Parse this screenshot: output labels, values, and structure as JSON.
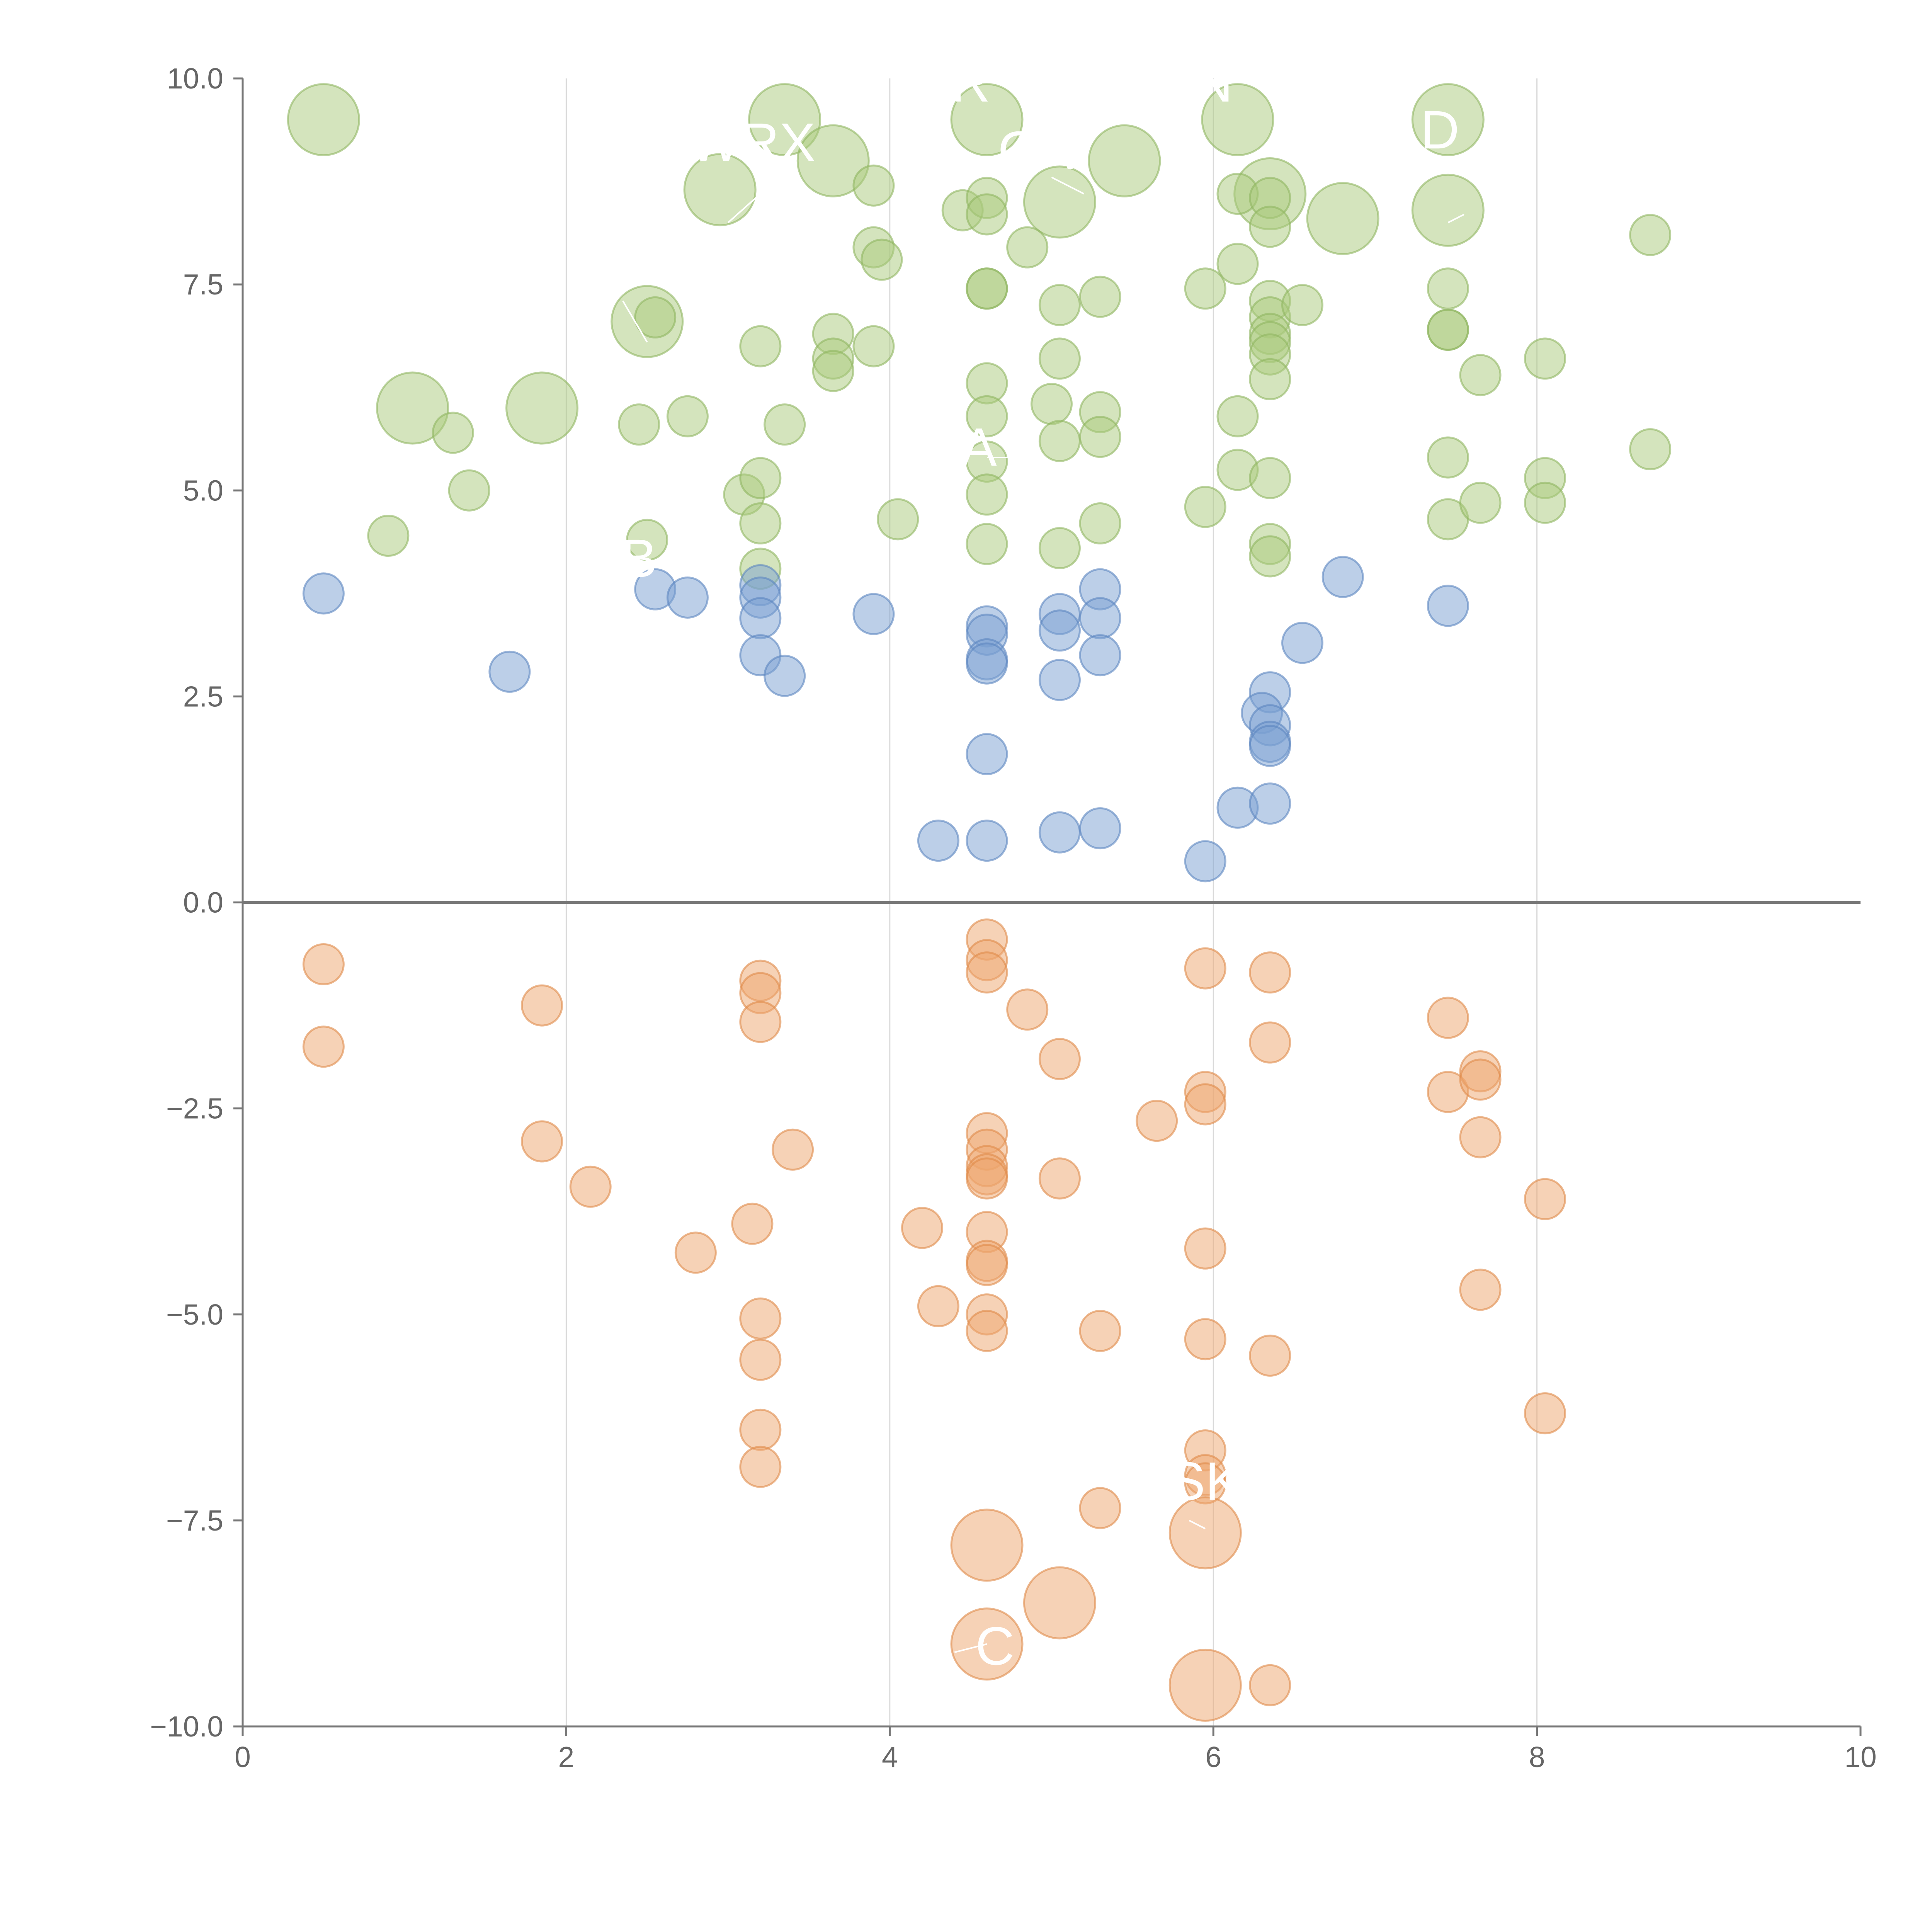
{
  "colors": {
    "green": "#a9c97c",
    "green_stroke": "#8fb560",
    "blue": "#7a9fd1",
    "blue_stroke": "#5b85c0",
    "orange": "#eea56d",
    "orange_stroke": "#df8a4a"
  },
  "chart_data": {
    "type": "scatter",
    "title": "",
    "xlabel": "",
    "ylabel": "",
    "xlim": [
      0,
      10
    ],
    "ylim": [
      -10,
      10
    ],
    "x_ticks": [
      0,
      2,
      4,
      6,
      8,
      10
    ],
    "x_tick_labels": [
      "0",
      "2",
      "4",
      "6",
      "8",
      "10"
    ],
    "y_ticks": [
      10,
      7.5,
      5,
      2.5,
      0,
      -2.5,
      -5,
      -7.5,
      -10
    ],
    "y_tick_labels": [
      "10.0",
      "7.5",
      "5.0",
      "2.5",
      "0.0",
      "−2.5",
      "−5.0",
      "−7.5",
      "−10.0"
    ],
    "grid_x": true,
    "zero_line": true,
    "series": [
      {
        "name": "green",
        "color_key": "green",
        "points": [
          [
            0.5,
            9.5,
            2
          ],
          [
            3.35,
            9.5,
            2
          ],
          [
            4.6,
            9.5,
            2
          ],
          [
            6.15,
            9.5,
            2
          ],
          [
            7.45,
            9.5,
            2
          ],
          [
            3.65,
            9.0,
            2
          ],
          [
            5.45,
            9.0,
            2
          ],
          [
            2.95,
            8.65,
            2
          ],
          [
            5.05,
            8.5,
            2
          ],
          [
            6.35,
            8.6,
            2
          ],
          [
            6.8,
            8.3,
            2
          ],
          [
            7.45,
            8.4,
            2
          ],
          [
            2.5,
            7.05,
            2
          ],
          [
            1.05,
            6.0,
            2
          ],
          [
            1.85,
            6.0,
            2
          ],
          [
            3.9,
            8.7,
            1
          ],
          [
            4.45,
            8.4,
            1
          ],
          [
            4.6,
            8.55,
            1
          ],
          [
            4.6,
            8.35,
            1
          ],
          [
            6.15,
            8.6,
            1
          ],
          [
            6.35,
            8.55,
            1
          ],
          [
            6.35,
            8.2,
            1
          ],
          [
            3.9,
            7.95,
            1
          ],
          [
            3.95,
            7.8,
            1
          ],
          [
            4.85,
            7.95,
            1
          ],
          [
            8.7,
            8.1,
            1
          ],
          [
            4.6,
            7.45,
            1
          ],
          [
            4.6,
            7.45,
            1
          ],
          [
            5.05,
            7.25,
            1
          ],
          [
            5.3,
            7.35,
            1
          ],
          [
            5.95,
            7.45,
            1
          ],
          [
            6.15,
            7.75,
            1
          ],
          [
            6.35,
            7.3,
            1
          ],
          [
            6.35,
            7.1,
            1
          ],
          [
            6.35,
            6.9,
            1
          ],
          [
            6.35,
            6.8,
            1
          ],
          [
            6.35,
            6.65,
            1
          ],
          [
            6.55,
            7.25,
            1
          ],
          [
            7.45,
            7.45,
            1
          ],
          [
            7.45,
            6.95,
            1
          ],
          [
            7.45,
            6.95,
            1
          ],
          [
            2.55,
            7.1,
            1
          ],
          [
            3.2,
            6.75,
            1
          ],
          [
            3.65,
            6.9,
            1
          ],
          [
            3.65,
            6.6,
            1
          ],
          [
            3.65,
            6.45,
            1
          ],
          [
            3.9,
            6.75,
            1
          ],
          [
            4.6,
            6.3,
            1
          ],
          [
            5.05,
            6.6,
            1
          ],
          [
            6.35,
            6.35,
            1
          ],
          [
            7.65,
            6.4,
            1
          ],
          [
            8.05,
            6.6,
            1
          ],
          [
            1.3,
            5.7,
            1
          ],
          [
            2.45,
            5.8,
            1
          ],
          [
            2.75,
            5.9,
            1
          ],
          [
            3.35,
            5.8,
            1
          ],
          [
            4.6,
            5.9,
            1
          ],
          [
            5.0,
            6.05,
            1
          ],
          [
            5.05,
            5.6,
            1
          ],
          [
            5.3,
            5.95,
            1
          ],
          [
            5.3,
            5.65,
            1
          ],
          [
            6.15,
            5.9,
            1
          ],
          [
            8.7,
            5.5,
            1
          ],
          [
            1.4,
            5.0,
            1
          ],
          [
            3.1,
            4.95,
            1
          ],
          [
            3.2,
            5.15,
            1
          ],
          [
            3.2,
            4.6,
            1
          ],
          [
            4.6,
            5.35,
            1
          ],
          [
            4.6,
            4.95,
            1
          ],
          [
            4.05,
            4.65,
            1
          ],
          [
            6.15,
            5.25,
            1
          ],
          [
            6.35,
            5.15,
            1
          ],
          [
            5.95,
            4.8,
            1
          ],
          [
            7.45,
            5.4,
            1
          ],
          [
            7.45,
            4.65,
            1
          ],
          [
            7.65,
            4.85,
            1
          ],
          [
            8.05,
            5.15,
            1
          ],
          [
            8.05,
            4.85,
            1
          ],
          [
            0.9,
            4.45,
            1
          ],
          [
            2.5,
            4.4,
            1
          ],
          [
            3.2,
            4.05,
            1
          ],
          [
            4.6,
            4.35,
            1
          ],
          [
            5.05,
            4.3,
            1
          ],
          [
            5.3,
            4.6,
            1
          ],
          [
            6.35,
            4.35,
            1
          ],
          [
            6.35,
            4.2,
            1
          ]
        ]
      },
      {
        "name": "blue",
        "color_key": "blue",
        "points": [
          [
            0.5,
            3.75,
            1
          ],
          [
            2.55,
            3.8,
            1
          ],
          [
            2.75,
            3.7,
            1
          ],
          [
            3.2,
            3.85,
            1
          ],
          [
            3.2,
            3.7,
            1
          ],
          [
            3.2,
            3.45,
            1
          ],
          [
            3.2,
            3.0,
            1
          ],
          [
            3.35,
            2.75,
            1
          ],
          [
            3.9,
            3.5,
            1
          ],
          [
            4.6,
            3.35,
            1
          ],
          [
            4.6,
            3.25,
            1
          ],
          [
            4.6,
            2.95,
            1
          ],
          [
            4.6,
            2.9,
            1
          ],
          [
            5.05,
            3.5,
            1
          ],
          [
            5.05,
            3.3,
            1
          ],
          [
            5.05,
            2.7,
            1
          ],
          [
            5.3,
            3.8,
            1
          ],
          [
            5.3,
            3.45,
            1
          ],
          [
            5.3,
            3.0,
            1
          ],
          [
            6.8,
            3.95,
            1
          ],
          [
            6.55,
            3.15,
            1
          ],
          [
            7.45,
            3.6,
            1
          ],
          [
            1.65,
            2.8,
            1
          ],
          [
            6.35,
            2.55,
            1
          ],
          [
            6.3,
            2.3,
            1
          ],
          [
            6.35,
            2.15,
            1
          ],
          [
            6.35,
            1.95,
            1
          ],
          [
            6.35,
            1.9,
            1
          ],
          [
            4.6,
            1.8,
            1
          ],
          [
            6.15,
            1.15,
            1
          ],
          [
            6.35,
            1.2,
            1
          ],
          [
            4.3,
            0.75,
            1
          ],
          [
            4.6,
            0.75,
            1
          ],
          [
            5.05,
            0.85,
            1
          ],
          [
            5.3,
            0.9,
            1
          ],
          [
            5.95,
            0.5,
            1
          ]
        ]
      },
      {
        "name": "orange",
        "color_key": "orange",
        "points": [
          [
            0.5,
            -0.75,
            1
          ],
          [
            0.5,
            -1.75,
            1
          ],
          [
            1.85,
            -1.25,
            1
          ],
          [
            1.85,
            -2.9,
            1
          ],
          [
            2.15,
            -3.45,
            1
          ],
          [
            3.2,
            -0.95,
            1
          ],
          [
            3.2,
            -1.1,
            1
          ],
          [
            3.2,
            -1.45,
            1
          ],
          [
            3.4,
            -3.0,
            1
          ],
          [
            3.15,
            -3.9,
            1
          ],
          [
            2.8,
            -4.25,
            1
          ],
          [
            3.2,
            -5.05,
            1
          ],
          [
            3.2,
            -5.55,
            1
          ],
          [
            3.2,
            -6.4,
            1
          ],
          [
            3.2,
            -6.85,
            1
          ],
          [
            4.6,
            -0.45,
            1
          ],
          [
            4.6,
            -0.7,
            1
          ],
          [
            4.6,
            -0.85,
            1
          ],
          [
            4.85,
            -1.3,
            1
          ],
          [
            5.05,
            -1.9,
            1
          ],
          [
            4.6,
            -2.8,
            1
          ],
          [
            4.6,
            -3.0,
            1
          ],
          [
            4.6,
            -3.2,
            1
          ],
          [
            4.6,
            -3.3,
            1
          ],
          [
            4.6,
            -3.35,
            1
          ],
          [
            5.05,
            -3.35,
            1
          ],
          [
            4.2,
            -3.95,
            1
          ],
          [
            4.6,
            -4.0,
            1
          ],
          [
            4.6,
            -4.35,
            1
          ],
          [
            4.6,
            -4.4,
            1
          ],
          [
            4.3,
            -4.9,
            1
          ],
          [
            4.6,
            -5.0,
            1
          ],
          [
            4.6,
            -5.2,
            1
          ],
          [
            5.3,
            -5.2,
            1
          ],
          [
            5.3,
            -7.35,
            1
          ],
          [
            5.95,
            -0.8,
            1
          ],
          [
            5.65,
            -2.65,
            1
          ],
          [
            5.95,
            -2.3,
            1
          ],
          [
            5.95,
            -2.45,
            1
          ],
          [
            5.95,
            -4.2,
            1
          ],
          [
            5.95,
            -5.3,
            1
          ],
          [
            5.95,
            -6.65,
            1
          ],
          [
            5.95,
            -6.95,
            1
          ],
          [
            5.95,
            -7.05,
            1
          ],
          [
            6.35,
            -0.85,
            1
          ],
          [
            6.35,
            -1.7,
            1
          ],
          [
            6.35,
            -5.5,
            1
          ],
          [
            6.35,
            -9.5,
            1
          ],
          [
            7.45,
            -1.4,
            1
          ],
          [
            7.45,
            -2.3,
            1
          ],
          [
            7.65,
            -2.05,
            1
          ],
          [
            7.65,
            -2.15,
            1
          ],
          [
            7.65,
            -2.85,
            1
          ],
          [
            7.65,
            -4.7,
            1
          ],
          [
            8.05,
            -3.6,
            1
          ],
          [
            8.05,
            -6.2,
            1
          ],
          [
            4.6,
            -7.8,
            2
          ],
          [
            5.95,
            -7.65,
            2
          ],
          [
            5.05,
            -8.5,
            2
          ],
          [
            4.6,
            -9.0,
            2
          ],
          [
            5.95,
            -9.5,
            2
          ]
        ]
      }
    ],
    "annotations": [
      {
        "text": "R",
        "x": 4.5,
        "y": 9.72,
        "lx1": 4.05,
        "ly1": 9.6,
        "lx2": 4.3,
        "ly2": 9.6
      },
      {
        "text": "N",
        "x": 6.0,
        "y": 9.72,
        "lx1": 6.0,
        "ly1": 9.6,
        "lx2": 6.0,
        "ly2": 9.6
      },
      {
        "text": "WRX",
        "x": 3.15,
        "y": 9.0,
        "lx1": 3.0,
        "ly1": 8.25,
        "lx2": 3.2,
        "ly2": 8.6
      },
      {
        "text": "CA",
        "x": 4.9,
        "y": 8.9,
        "lx1": 5.2,
        "ly1": 8.6,
        "lx2": 5.0,
        "ly2": 8.8
      },
      {
        "text": "D",
        "x": 7.4,
        "y": 9.15,
        "lx1": 7.45,
        "ly1": 8.25,
        "lx2": 7.55,
        "ly2": 8.35
      },
      {
        "text": "A",
        "x": 4.55,
        "y": 5.3,
        "lx1": 4.6,
        "ly1": 5.4,
        "lx2": 4.75,
        "ly2": 5.4
      },
      {
        "text": "B",
        "x": 2.45,
        "y": 3.95,
        "lx1": 2.5,
        "ly1": 6.8,
        "lx2": 2.35,
        "ly2": 7.3
      },
      {
        "text": "SK",
        "x": 5.95,
        "y": -7.25,
        "lx1": 5.95,
        "ly1": -7.6,
        "lx2": 5.85,
        "ly2": -7.5
      },
      {
        "text": "C",
        "x": 4.65,
        "y": -9.25,
        "lx1": 4.6,
        "ly1": -9.0,
        "lx2": 4.4,
        "ly2": -9.1
      }
    ]
  }
}
